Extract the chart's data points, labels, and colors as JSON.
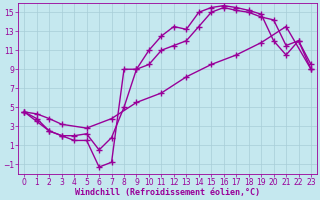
{
  "title": "",
  "xlabel": "Windchill (Refroidissement éolien,°C)",
  "ylabel": "",
  "xlim": [
    -0.5,
    23.5
  ],
  "ylim": [
    -2,
    16
  ],
  "xticks": [
    0,
    1,
    2,
    3,
    4,
    5,
    6,
    7,
    8,
    9,
    10,
    11,
    12,
    13,
    14,
    15,
    16,
    17,
    18,
    19,
    20,
    21,
    22,
    23
  ],
  "yticks": [
    -1,
    1,
    3,
    5,
    7,
    9,
    11,
    13,
    15
  ],
  "bg_color": "#c5e8ef",
  "line_color": "#990099",
  "curve1_x": [
    0,
    1,
    2,
    3,
    4,
    5,
    6,
    7,
    8,
    9,
    10,
    11,
    12,
    13,
    14,
    15,
    16,
    17,
    18,
    19,
    20,
    21,
    22,
    23
  ],
  "curve1_y": [
    4.5,
    3.5,
    2.5,
    2.0,
    1.5,
    1.5,
    -1.3,
    -0.8,
    9.0,
    9.0,
    11.0,
    12.5,
    13.5,
    13.2,
    15.0,
    15.5,
    15.7,
    15.5,
    15.2,
    14.8,
    12.0,
    10.5,
    12.0,
    9.5
  ],
  "curve2_x": [
    0,
    1,
    2,
    3,
    4,
    5,
    6,
    7,
    8,
    9,
    10,
    11,
    12,
    13,
    14,
    15,
    16,
    17,
    18,
    19,
    20,
    21,
    22,
    23
  ],
  "curve2_y": [
    4.5,
    3.8,
    2.5,
    2.0,
    2.0,
    2.2,
    0.5,
    1.8,
    5.0,
    9.0,
    9.5,
    11.0,
    11.5,
    12.0,
    13.5,
    15.0,
    15.5,
    15.2,
    15.0,
    14.5,
    14.2,
    11.5,
    12.0,
    9.0
  ],
  "curve3_x": [
    0,
    1,
    2,
    3,
    5,
    7,
    9,
    11,
    13,
    15,
    17,
    19,
    21,
    23
  ],
  "curve3_y": [
    4.5,
    4.3,
    3.8,
    3.2,
    2.8,
    3.8,
    5.5,
    6.5,
    8.2,
    9.5,
    10.5,
    11.8,
    13.5,
    9.0
  ],
  "grid_color": "#a8cdd8",
  "marker": "+",
  "markersize": 4,
  "linewidth": 1.0,
  "tick_fontsize": 5.5,
  "label_fontsize": 6.0
}
